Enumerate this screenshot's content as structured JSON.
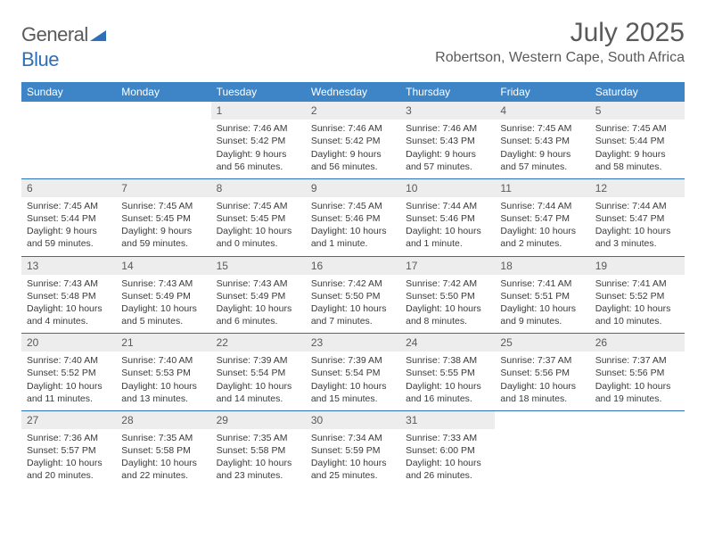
{
  "logo": {
    "text_gray": "General",
    "text_blue": "Blue"
  },
  "header": {
    "month_title": "July 2025",
    "location": "Robertson, Western Cape, South Africa"
  },
  "colors": {
    "header_bg": "#3d85c6",
    "header_text": "#ffffff",
    "daynum_bg": "#ededed",
    "border": "#2f6fb5",
    "text_gray": "#5a5a5a",
    "body_text": "#3a3a3a"
  },
  "day_labels": [
    "Sunday",
    "Monday",
    "Tuesday",
    "Wednesday",
    "Thursday",
    "Friday",
    "Saturday"
  ],
  "weeks": [
    [
      null,
      null,
      {
        "n": "1",
        "sr": "7:46 AM",
        "ss": "5:42 PM",
        "dl": "9 hours and 56 minutes."
      },
      {
        "n": "2",
        "sr": "7:46 AM",
        "ss": "5:42 PM",
        "dl": "9 hours and 56 minutes."
      },
      {
        "n": "3",
        "sr": "7:46 AM",
        "ss": "5:43 PM",
        "dl": "9 hours and 57 minutes."
      },
      {
        "n": "4",
        "sr": "7:45 AM",
        "ss": "5:43 PM",
        "dl": "9 hours and 57 minutes."
      },
      {
        "n": "5",
        "sr": "7:45 AM",
        "ss": "5:44 PM",
        "dl": "9 hours and 58 minutes."
      }
    ],
    [
      {
        "n": "6",
        "sr": "7:45 AM",
        "ss": "5:44 PM",
        "dl": "9 hours and 59 minutes."
      },
      {
        "n": "7",
        "sr": "7:45 AM",
        "ss": "5:45 PM",
        "dl": "9 hours and 59 minutes."
      },
      {
        "n": "8",
        "sr": "7:45 AM",
        "ss": "5:45 PM",
        "dl": "10 hours and 0 minutes."
      },
      {
        "n": "9",
        "sr": "7:45 AM",
        "ss": "5:46 PM",
        "dl": "10 hours and 1 minute."
      },
      {
        "n": "10",
        "sr": "7:44 AM",
        "ss": "5:46 PM",
        "dl": "10 hours and 1 minute."
      },
      {
        "n": "11",
        "sr": "7:44 AM",
        "ss": "5:47 PM",
        "dl": "10 hours and 2 minutes."
      },
      {
        "n": "12",
        "sr": "7:44 AM",
        "ss": "5:47 PM",
        "dl": "10 hours and 3 minutes."
      }
    ],
    [
      {
        "n": "13",
        "sr": "7:43 AM",
        "ss": "5:48 PM",
        "dl": "10 hours and 4 minutes."
      },
      {
        "n": "14",
        "sr": "7:43 AM",
        "ss": "5:49 PM",
        "dl": "10 hours and 5 minutes."
      },
      {
        "n": "15",
        "sr": "7:43 AM",
        "ss": "5:49 PM",
        "dl": "10 hours and 6 minutes."
      },
      {
        "n": "16",
        "sr": "7:42 AM",
        "ss": "5:50 PM",
        "dl": "10 hours and 7 minutes."
      },
      {
        "n": "17",
        "sr": "7:42 AM",
        "ss": "5:50 PM",
        "dl": "10 hours and 8 minutes."
      },
      {
        "n": "18",
        "sr": "7:41 AM",
        "ss": "5:51 PM",
        "dl": "10 hours and 9 minutes."
      },
      {
        "n": "19",
        "sr": "7:41 AM",
        "ss": "5:52 PM",
        "dl": "10 hours and 10 minutes."
      }
    ],
    [
      {
        "n": "20",
        "sr": "7:40 AM",
        "ss": "5:52 PM",
        "dl": "10 hours and 11 minutes."
      },
      {
        "n": "21",
        "sr": "7:40 AM",
        "ss": "5:53 PM",
        "dl": "10 hours and 13 minutes."
      },
      {
        "n": "22",
        "sr": "7:39 AM",
        "ss": "5:54 PM",
        "dl": "10 hours and 14 minutes."
      },
      {
        "n": "23",
        "sr": "7:39 AM",
        "ss": "5:54 PM",
        "dl": "10 hours and 15 minutes."
      },
      {
        "n": "24",
        "sr": "7:38 AM",
        "ss": "5:55 PM",
        "dl": "10 hours and 16 minutes."
      },
      {
        "n": "25",
        "sr": "7:37 AM",
        "ss": "5:56 PM",
        "dl": "10 hours and 18 minutes."
      },
      {
        "n": "26",
        "sr": "7:37 AM",
        "ss": "5:56 PM",
        "dl": "10 hours and 19 minutes."
      }
    ],
    [
      {
        "n": "27",
        "sr": "7:36 AM",
        "ss": "5:57 PM",
        "dl": "10 hours and 20 minutes."
      },
      {
        "n": "28",
        "sr": "7:35 AM",
        "ss": "5:58 PM",
        "dl": "10 hours and 22 minutes."
      },
      {
        "n": "29",
        "sr": "7:35 AM",
        "ss": "5:58 PM",
        "dl": "10 hours and 23 minutes."
      },
      {
        "n": "30",
        "sr": "7:34 AM",
        "ss": "5:59 PM",
        "dl": "10 hours and 25 minutes."
      },
      {
        "n": "31",
        "sr": "7:33 AM",
        "ss": "6:00 PM",
        "dl": "10 hours and 26 minutes."
      },
      null,
      null
    ]
  ],
  "labels": {
    "sunrise": "Sunrise:",
    "sunset": "Sunset:",
    "daylight": "Daylight:"
  }
}
